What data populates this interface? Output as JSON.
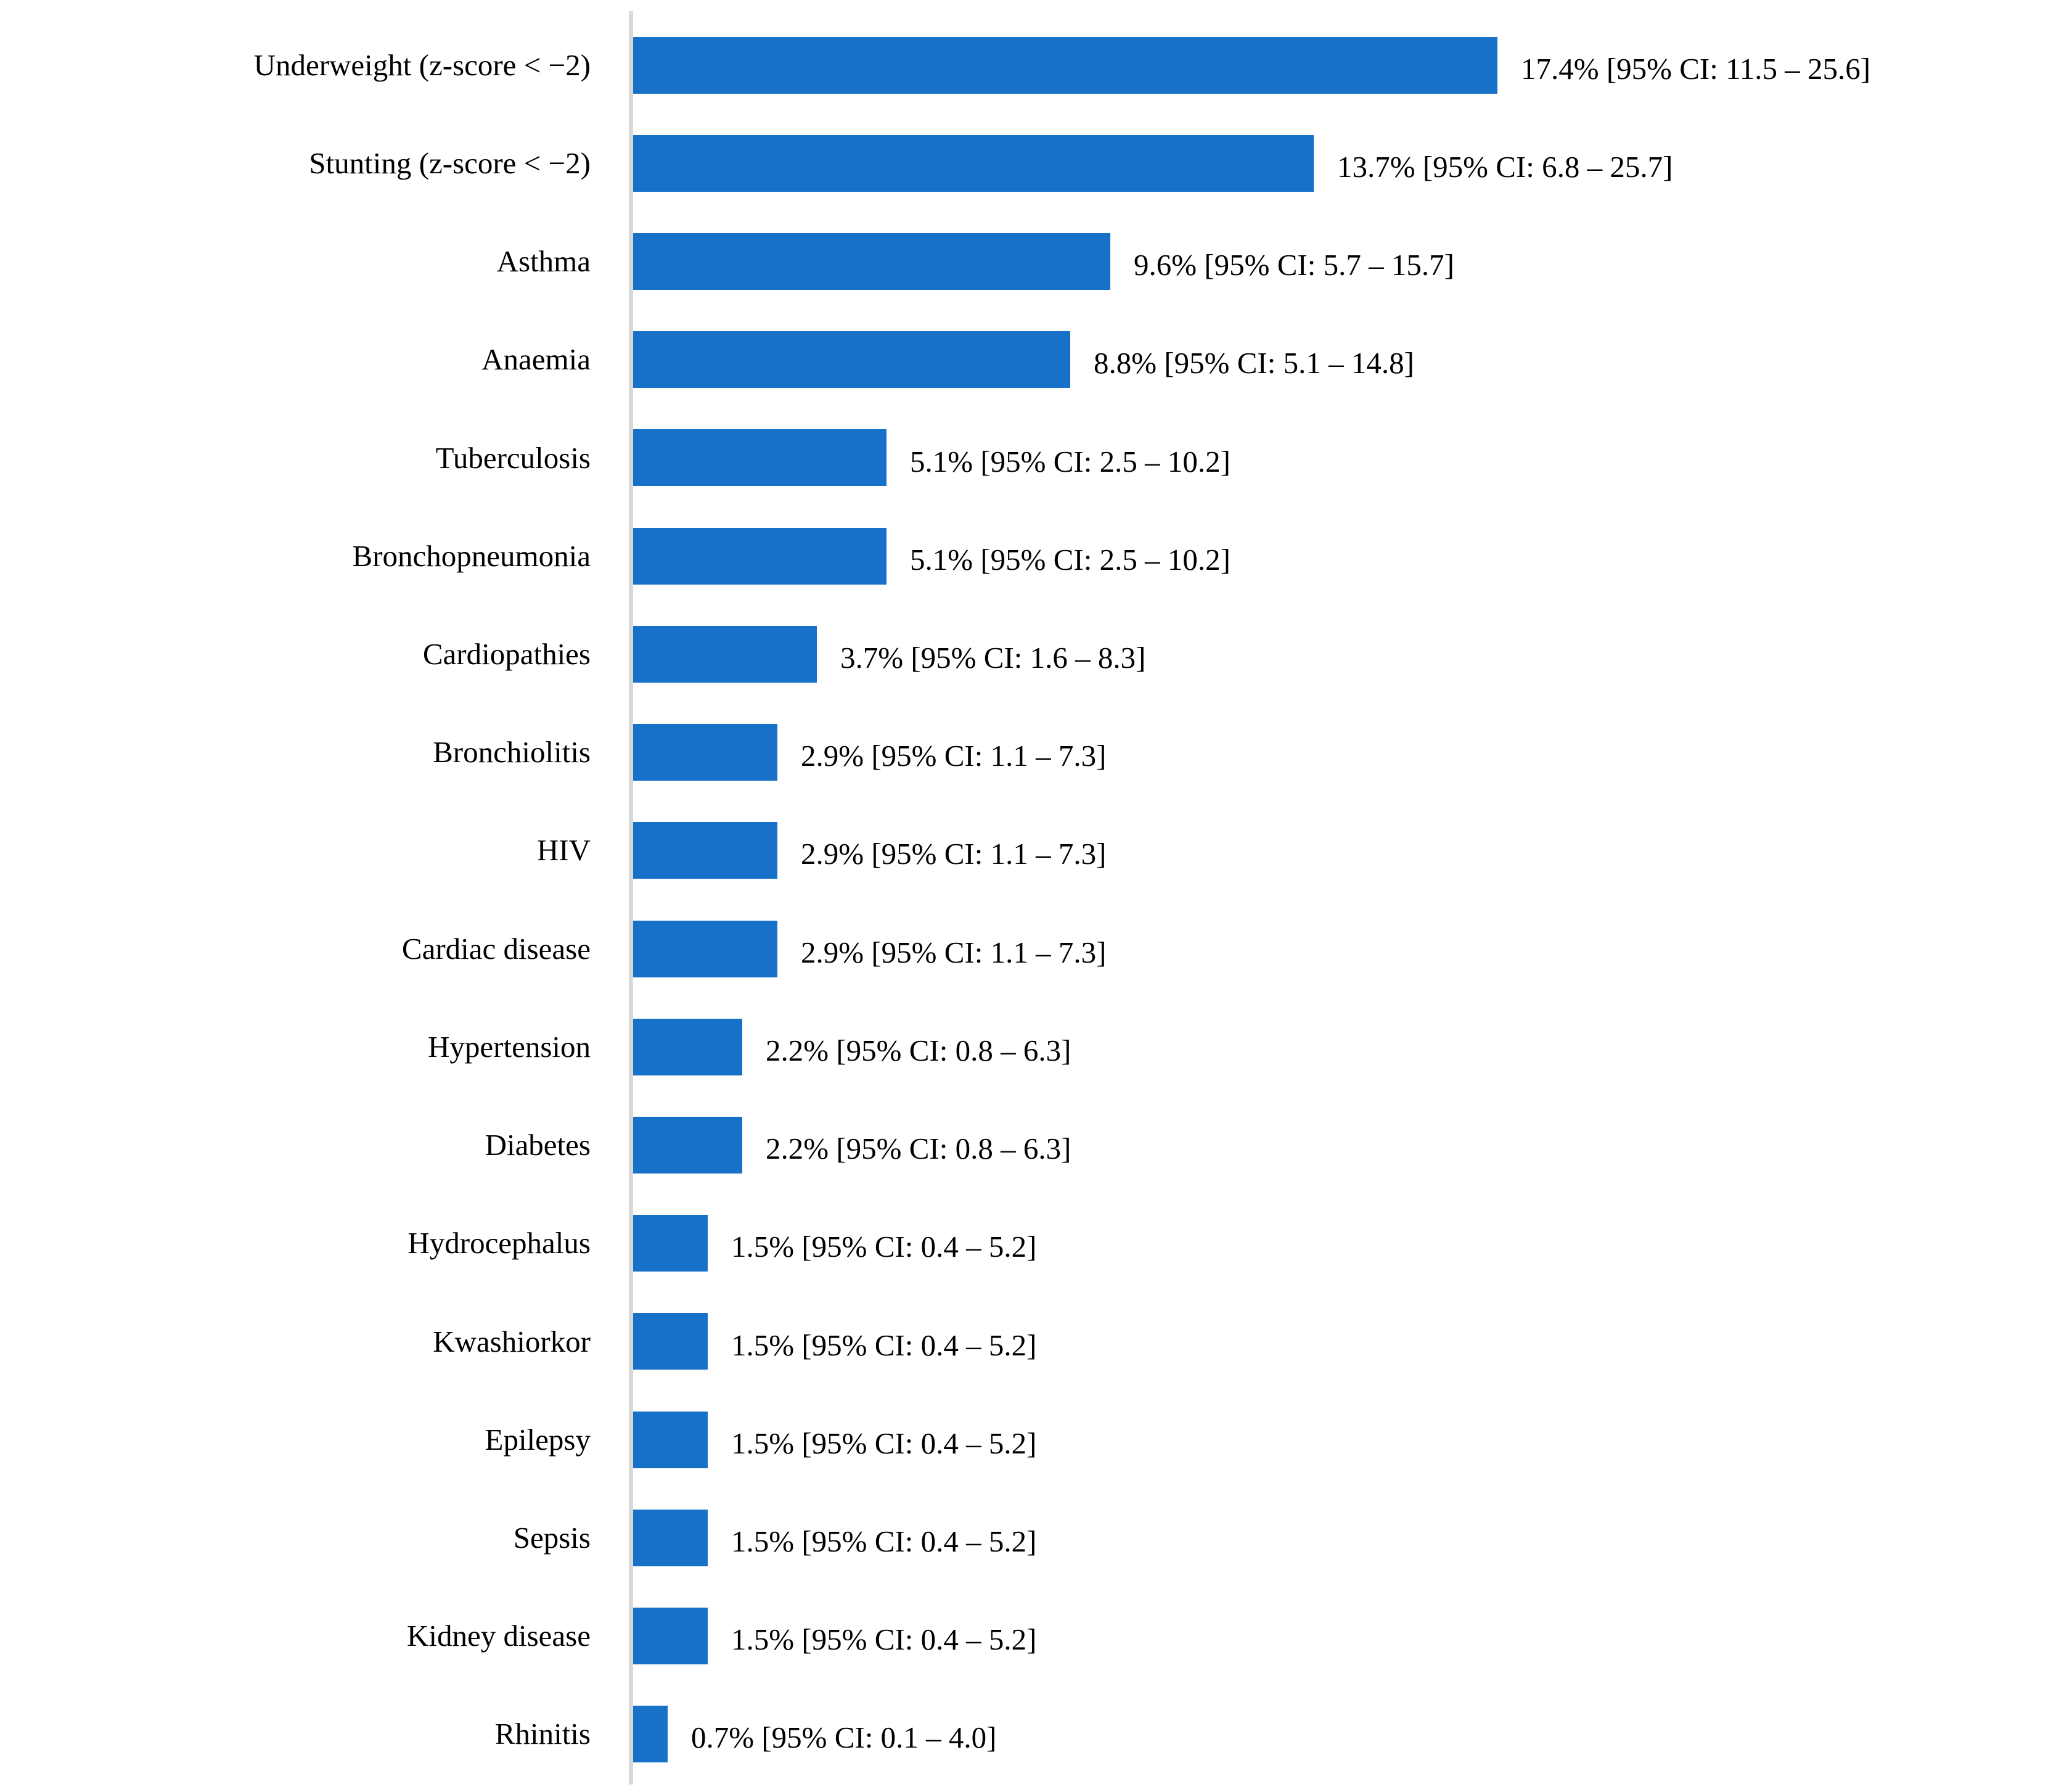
{
  "chart_data": {
    "type": "bar",
    "orientation": "horizontal",
    "title": "",
    "xlabel": "",
    "ylabel": "",
    "grid": false,
    "legend": false,
    "xlim": [
      0,
      29
    ],
    "value_label_position": "right-of-bar",
    "categories": [
      "Underweight (z-score < −2)",
      "Stunting (z-score < −2)",
      "Asthma",
      "Anaemia",
      "Tuberculosis",
      "Bronchopneumonia",
      "Cardiopathies",
      "Bronchiolitis",
      "HIV",
      "Cardiac disease",
      "Hypertension",
      "Diabetes",
      "Hydrocephalus",
      "Kwashiorkor",
      "Epilepsy",
      "Sepsis",
      "Kidney disease",
      "Rhinitis"
    ],
    "values": [
      17.4,
      13.7,
      9.6,
      8.8,
      5.1,
      5.1,
      3.7,
      2.9,
      2.9,
      2.9,
      2.2,
      2.2,
      1.5,
      1.5,
      1.5,
      1.5,
      1.5,
      0.7
    ],
    "ci_low": [
      11.5,
      6.8,
      5.7,
      5.1,
      2.5,
      2.5,
      1.6,
      1.1,
      1.1,
      1.1,
      0.8,
      0.8,
      0.4,
      0.4,
      0.4,
      0.4,
      0.4,
      0.1
    ],
    "ci_high": [
      25.6,
      25.7,
      15.7,
      14.8,
      10.2,
      10.2,
      8.3,
      7.3,
      7.3,
      7.3,
      6.3,
      6.3,
      5.2,
      5.2,
      5.2,
      5.2,
      5.2,
      4.0
    ],
    "value_labels": [
      "17.4% [95% CI: 11.5 – 25.6]",
      "13.7% [95% CI: 6.8 – 25.7]",
      "9.6% [95% CI: 5.7 – 15.7]",
      "8.8% [95% CI: 5.1 – 14.8]",
      "5.1% [95% CI: 2.5 – 10.2]",
      "5.1% [95% CI: 2.5 – 10.2]",
      "3.7% [95% CI: 1.6 – 8.3]",
      "2.9% [95% CI: 1.1 – 7.3]",
      "2.9% [95% CI: 1.1 – 7.3]",
      "2.9% [95% CI: 1.1 – 7.3]",
      "2.2% [95% CI: 0.8 – 6.3]",
      "2.2% [95% CI: 0.8 – 6.3]",
      "1.5% [95% CI: 0.4 – 5.2]",
      "1.5% [95% CI: 0.4 – 5.2]",
      "1.5% [95% CI: 0.4 – 5.2]",
      "1.5% [95% CI: 0.4 – 5.2]",
      "1.5% [95% CI: 0.4 – 5.2]",
      "0.7% [95% CI: 0.1 – 4.0]"
    ],
    "colors": {
      "bar": "#1771C9",
      "axis_line": "#D9D9D9",
      "text": "#000000",
      "background": "#FFFFFF"
    }
  }
}
